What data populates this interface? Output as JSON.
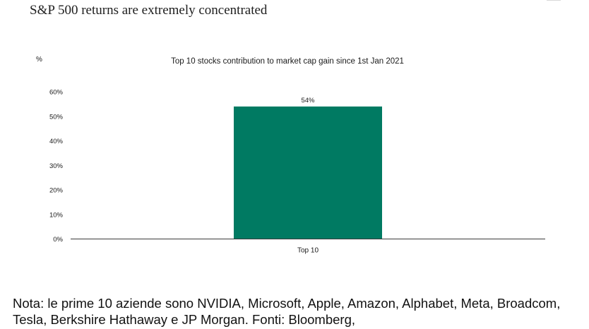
{
  "page": {
    "title": "S&P 500 returns are extremely concentrated",
    "note": "Nota: le prime 10 aziende sono NVIDIA, Microsoft, Apple, Amazon, Alphabet, Meta, Broadcom, Tesla, Berkshire Hathaway e JP Morgan. Fonti: Bloomberg,"
  },
  "chart_data": {
    "type": "bar",
    "title": "Top 10 stocks contribution to market cap gain since 1st Jan 2021",
    "ylabel": "%",
    "xlabel": "",
    "categories": [
      "Top 10"
    ],
    "values": [
      54
    ],
    "data_labels": [
      "54%"
    ],
    "ylim": [
      0,
      60
    ],
    "yticks": [
      0,
      10,
      20,
      30,
      40,
      50,
      60
    ],
    "ytick_labels": [
      "0%",
      "10%",
      "20%",
      "30%",
      "40%",
      "50%",
      "60%"
    ],
    "grid": false,
    "bar_color": "#007a62",
    "axis_color": "#3a3a3a"
  }
}
